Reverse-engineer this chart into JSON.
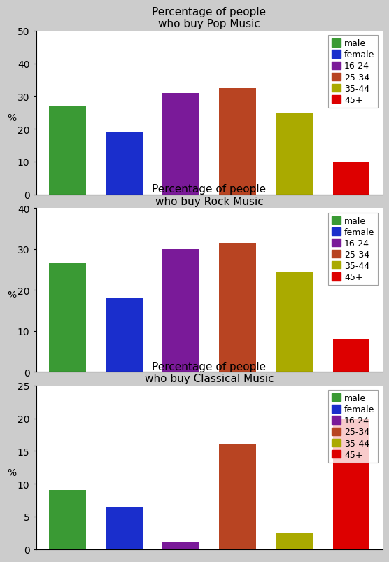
{
  "charts": [
    {
      "title": "Percentage of people\nwho buy Pop Music",
      "ylim": [
        0,
        50
      ],
      "yticks": [
        0,
        10,
        20,
        30,
        40,
        50
      ],
      "values": [
        27,
        19,
        31,
        32.5,
        25,
        10
      ]
    },
    {
      "title": "Percentage of people\nwho buy Rock Music",
      "ylim": [
        0,
        40
      ],
      "yticks": [
        0,
        10,
        20,
        30,
        40
      ],
      "values": [
        26.5,
        18,
        30,
        31.5,
        24.5,
        8
      ]
    },
    {
      "title": "Percentage of people\nwho buy Classical Music",
      "ylim": [
        0,
        25
      ],
      "yticks": [
        0,
        5,
        10,
        15,
        20,
        25
      ],
      "values": [
        9,
        6.5,
        1,
        16,
        2.5,
        20
      ]
    }
  ],
  "categories": [
    "male",
    "female",
    "16-24",
    "25-34",
    "35-44",
    "45+"
  ],
  "colors": [
    "#3a9a34",
    "#1a2ecc",
    "#7a1a99",
    "#b84422",
    "#aaaa00",
    "#dd0000"
  ],
  "ylabel": "%",
  "legend_labels": [
    "male",
    "female",
    "16-24",
    "25-34",
    "35-44",
    "45+"
  ],
  "title_fontsize": 11,
  "tick_fontsize": 10,
  "legend_fontsize": 9,
  "bar_width": 0.65,
  "figure_bg": "#cccccc",
  "panel_bg": "#ffffff"
}
